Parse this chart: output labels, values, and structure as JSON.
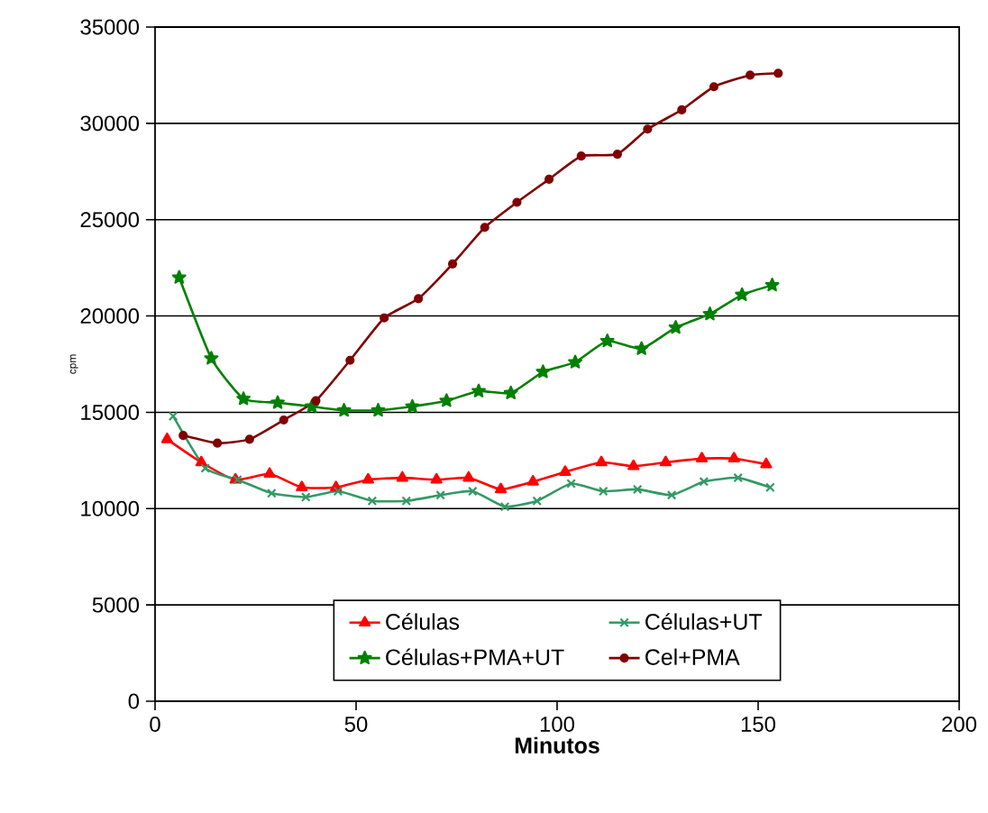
{
  "chart_data": {
    "type": "line",
    "xlabel": "Minutos",
    "ylabel": "cpm",
    "xlim": [
      0,
      200
    ],
    "xticks": [
      0,
      50,
      100,
      150,
      200
    ],
    "ylim": [
      0,
      35000
    ],
    "yticks": [
      0,
      5000,
      10000,
      15000,
      20000,
      25000,
      30000,
      35000
    ],
    "grid": "y",
    "legend": "bottom",
    "line_style": "solid",
    "series": [
      {
        "name": "Células",
        "color": "#ff0000",
        "marker": "triangle",
        "x": [
          3,
          11.5,
          20,
          28.5,
          36.5,
          45,
          53,
          61.5,
          70,
          78,
          86,
          94,
          102,
          111,
          119,
          127,
          136,
          144,
          152
        ],
        "values": [
          13600,
          12400,
          11500,
          11800,
          11100,
          11100,
          11500,
          11600,
          11500,
          11600,
          11000,
          11400,
          11900,
          12400,
          12200,
          12400,
          12600,
          12600,
          12300
        ]
      },
      {
        "name": "Células+UT",
        "color": "#339966",
        "marker": "cross",
        "x": [
          4.5,
          12.5,
          20.5,
          29,
          37.5,
          45.5,
          54,
          62.5,
          71,
          79,
          87,
          95,
          103.5,
          111.5,
          120,
          128.5,
          136.5,
          145,
          153
        ],
        "values": [
          14800,
          12100,
          11500,
          10800,
          10600,
          10900,
          10400,
          10400,
          10700,
          10900,
          10100,
          10400,
          11300,
          10900,
          11000,
          10700,
          11400,
          11600,
          11100
        ]
      },
      {
        "name": "Células+PMA+UT",
        "color": "#008000",
        "marker": "star",
        "x": [
          6,
          14,
          22,
          30.5,
          39,
          47,
          55.5,
          64,
          72.5,
          80.5,
          88.5,
          96.5,
          104.5,
          112.5,
          121,
          129.5,
          138,
          146,
          153.5
        ],
        "values": [
          22000,
          17800,
          15700,
          15500,
          15300,
          15100,
          15100,
          15300,
          15600,
          16100,
          16000,
          17100,
          17600,
          18700,
          18300,
          19400,
          20100,
          21100,
          21600
        ]
      },
      {
        "name": "Cel+PMA",
        "color": "#800000",
        "marker": "circle",
        "x": [
          7,
          15.5,
          23.5,
          32,
          40,
          48.5,
          57,
          65.5,
          74,
          82,
          90,
          98,
          106,
          115,
          122.5,
          131,
          139,
          148,
          155
        ],
        "values": [
          13800,
          13400,
          13600,
          14600,
          15600,
          17700,
          19900,
          20900,
          22700,
          24600,
          25900,
          27100,
          28300,
          28400,
          29700,
          30700,
          31900,
          32500,
          32600
        ]
      }
    ]
  }
}
